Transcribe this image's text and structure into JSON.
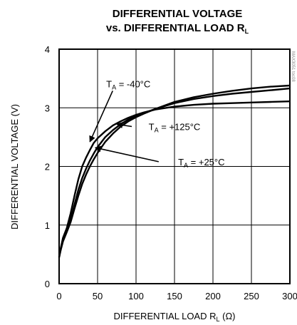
{
  "chart_data": {
    "type": "line",
    "title_line1": "DIFFERENTIAL VOLTAGE",
    "title_line2_prefix": "vs. DIFFERENTIAL LOAD R",
    "title_line2_sub": "L",
    "xlabel_prefix": "DIFFERENTIAL LOAD R",
    "xlabel_sub": "L",
    "xlabel_suffix": " (Ω)",
    "ylabel": "DIFFERENTIAL VOLTAGE (V)",
    "xlim": [
      0,
      300
    ],
    "ylim": [
      0,
      4
    ],
    "xticks": [
      0,
      50,
      100,
      150,
      200,
      250,
      300
    ],
    "yticks": [
      0,
      1,
      2,
      3,
      4
    ],
    "grid": true,
    "watermark": "MAX3051 toc08",
    "series": [
      {
        "name": "-40°C",
        "label_prefix": "T",
        "label_sub": "A",
        "label_suffix": " = -40°C",
        "x": [
          0,
          2,
          5,
          10,
          15,
          20,
          25,
          30,
          35,
          40,
          45,
          50,
          60,
          70,
          80,
          90,
          100,
          110,
          125,
          150,
          175,
          200,
          225,
          250,
          275,
          300
        ],
        "y": [
          0.45,
          0.6,
          0.78,
          0.95,
          1.2,
          1.5,
          1.78,
          2.0,
          2.15,
          2.28,
          2.4,
          2.48,
          2.6,
          2.7,
          2.77,
          2.83,
          2.88,
          2.92,
          2.97,
          3.02,
          3.05,
          3.07,
          3.08,
          3.09,
          3.1,
          3.11
        ]
      },
      {
        "name": "+125°C",
        "label_prefix": "T",
        "label_sub": "A",
        "label_suffix": " = +125°C",
        "x": [
          0,
          2,
          5,
          10,
          15,
          20,
          25,
          30,
          35,
          40,
          45,
          50,
          60,
          70,
          80,
          90,
          100,
          110,
          125,
          150,
          175,
          200,
          225,
          250,
          275,
          300
        ],
        "y": [
          0.45,
          0.58,
          0.74,
          0.9,
          1.1,
          1.35,
          1.6,
          1.8,
          1.96,
          2.1,
          2.22,
          2.33,
          2.5,
          2.62,
          2.72,
          2.8,
          2.86,
          2.91,
          2.98,
          3.08,
          3.15,
          3.2,
          3.24,
          3.27,
          3.3,
          3.33
        ]
      },
      {
        "name": "+25°C",
        "label_prefix": "T",
        "label_sub": "A",
        "label_suffix": " = +25°C",
        "x": [
          0,
          2,
          5,
          10,
          15,
          20,
          25,
          30,
          35,
          40,
          45,
          50,
          60,
          70,
          80,
          90,
          100,
          110,
          125,
          150,
          175,
          200,
          225,
          250,
          275,
          300
        ],
        "y": [
          0.45,
          0.57,
          0.72,
          0.88,
          1.05,
          1.28,
          1.5,
          1.7,
          1.86,
          2.0,
          2.12,
          2.23,
          2.42,
          2.56,
          2.68,
          2.77,
          2.84,
          2.9,
          2.98,
          3.1,
          3.18,
          3.24,
          3.29,
          3.33,
          3.36,
          3.38
        ]
      }
    ],
    "annotations": [
      {
        "series": 0,
        "text_x": 90,
        "text_y": 3.35,
        "arrow_to_x": 40,
        "arrow_to_y": 2.42
      },
      {
        "series": 1,
        "text_x": 150,
        "text_y": 2.62,
        "arrow_to_x": 75,
        "arrow_to_y": 2.72
      },
      {
        "series": 2,
        "text_x": 185,
        "text_y": 2.02,
        "arrow_to_x": 47,
        "arrow_to_y": 2.32
      }
    ]
  }
}
